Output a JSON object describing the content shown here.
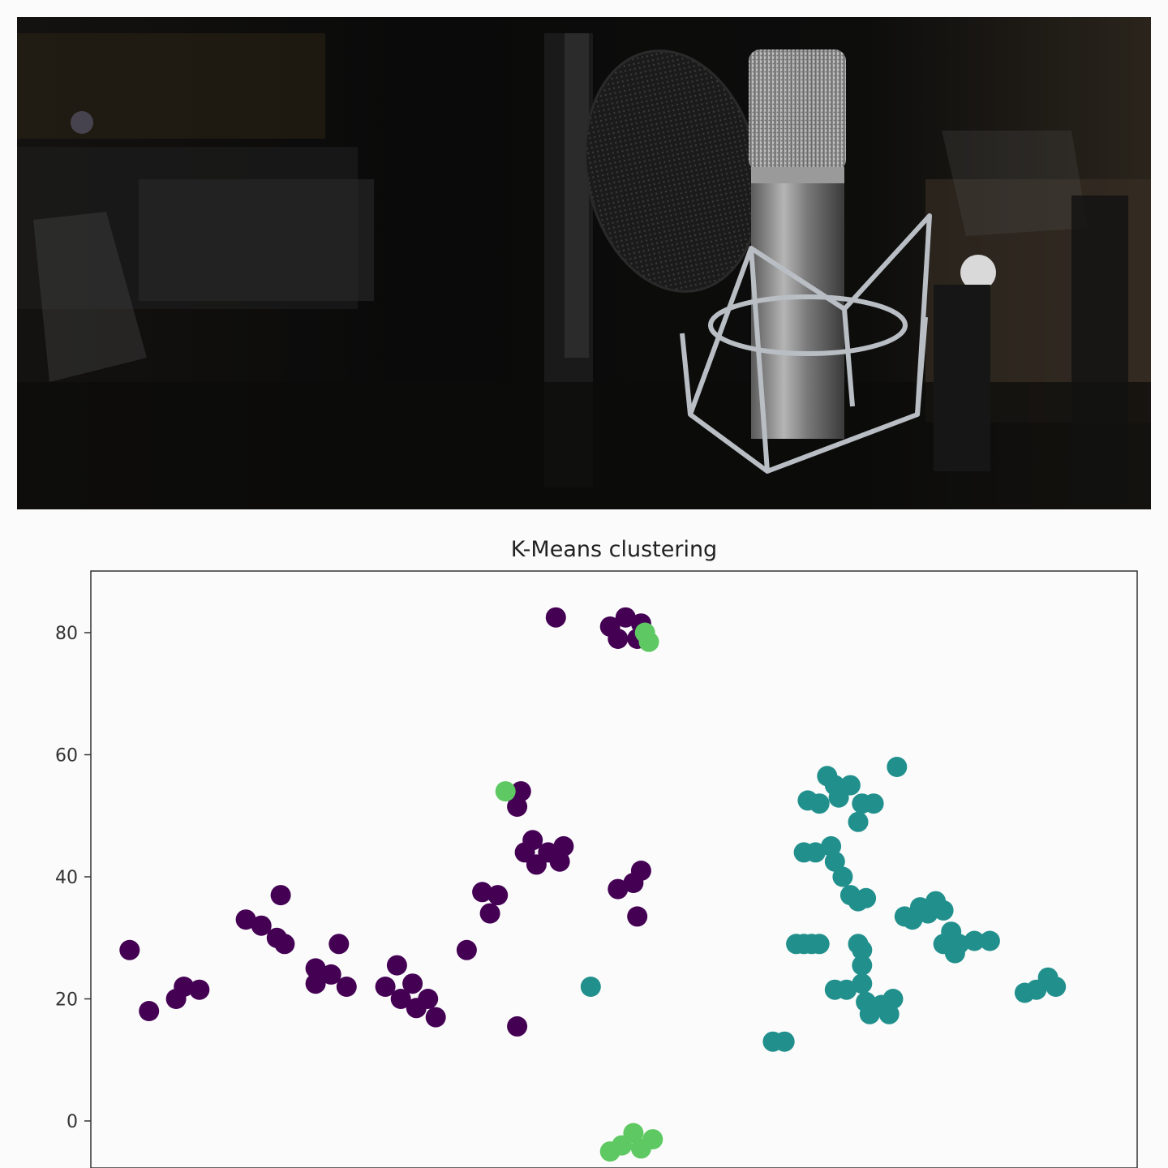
{
  "photo": {
    "subject": "studio-microphone-with-pop-filter"
  },
  "chart_data": {
    "type": "scatter",
    "title": "K-Means clustering",
    "xlabel": "",
    "ylabel": "",
    "ylim": [
      -5,
      90
    ],
    "yticks": [
      0,
      20,
      40,
      60,
      80
    ],
    "xticks_visible": false,
    "grid": false,
    "colors": {
      "cluster-0": "#440154",
      "cluster-1": "#21908d",
      "cluster-2": "#5ec962"
    },
    "series": [
      {
        "color": "#440154",
        "points": [
          [
            5,
            28
          ],
          [
            7.5,
            18
          ],
          [
            11,
            20
          ],
          [
            12,
            22
          ],
          [
            14,
            21.5
          ],
          [
            20,
            33
          ],
          [
            22,
            32
          ],
          [
            24,
            30
          ],
          [
            25,
            29
          ],
          [
            24.5,
            37
          ],
          [
            29,
            25
          ],
          [
            29,
            22.5
          ],
          [
            31,
            24
          ],
          [
            32,
            29
          ],
          [
            33,
            22
          ],
          [
            38,
            22
          ],
          [
            39.5,
            25.5
          ],
          [
            40,
            20
          ],
          [
            41.5,
            22.5
          ],
          [
            42,
            18.5
          ],
          [
            43.5,
            20
          ],
          [
            44.5,
            17
          ],
          [
            48.5,
            28
          ],
          [
            50.5,
            37.5
          ],
          [
            51.5,
            34
          ],
          [
            52.5,
            37
          ],
          [
            55,
            51.5
          ],
          [
            55.5,
            54
          ],
          [
            56,
            44
          ],
          [
            57,
            46
          ],
          [
            57.5,
            42
          ],
          [
            59,
            44
          ],
          [
            60.5,
            42.5
          ],
          [
            61,
            45
          ],
          [
            55,
            15.5
          ],
          [
            60,
            82.5
          ],
          [
            67,
            81
          ],
          [
            68,
            79
          ],
          [
            69,
            82.5
          ],
          [
            70.5,
            79
          ],
          [
            71,
            81.5
          ],
          [
            68,
            38
          ],
          [
            70,
            39
          ],
          [
            71,
            41
          ],
          [
            70.5,
            33.5
          ]
        ]
      },
      {
        "color": "#21908d",
        "points": [
          [
            64.5,
            22
          ],
          [
            88,
            13
          ],
          [
            89.5,
            13
          ],
          [
            91,
            29
          ],
          [
            92,
            29
          ],
          [
            93,
            29
          ],
          [
            94,
            29
          ],
          [
            92,
            44
          ],
          [
            93.5,
            44
          ],
          [
            95.5,
            45
          ],
          [
            96,
            42.5
          ],
          [
            97,
            40
          ],
          [
            98,
            37
          ],
          [
            99,
            36
          ],
          [
            100,
            36.5
          ],
          [
            92.5,
            52.5
          ],
          [
            94,
            52
          ],
          [
            95,
            56.5
          ],
          [
            96,
            55
          ],
          [
            96.5,
            53
          ],
          [
            98,
            55
          ],
          [
            99,
            49
          ],
          [
            99.5,
            52
          ],
          [
            101,
            52
          ],
          [
            104,
            58
          ],
          [
            99,
            29
          ],
          [
            99.5,
            28
          ],
          [
            99.5,
            25.5
          ],
          [
            99.5,
            22.5
          ],
          [
            100,
            19.5
          ],
          [
            100.5,
            17.5
          ],
          [
            102,
            19
          ],
          [
            103,
            17.5
          ],
          [
            103.5,
            20
          ],
          [
            96,
            21.5
          ],
          [
            97.5,
            21.5
          ],
          [
            105,
            33.5
          ],
          [
            106,
            33
          ],
          [
            107,
            35
          ],
          [
            108,
            34
          ],
          [
            109,
            36
          ],
          [
            110,
            34.5
          ],
          [
            110,
            29
          ],
          [
            111,
            31
          ],
          [
            111.5,
            27.5
          ],
          [
            112,
            29
          ],
          [
            114,
            29.5
          ],
          [
            116,
            29.5
          ],
          [
            120.5,
            21
          ],
          [
            122,
            21.5
          ],
          [
            123.5,
            23.5
          ],
          [
            124.5,
            22
          ]
        ]
      },
      {
        "color": "#5ec962",
        "points": [
          [
            53.5,
            54
          ],
          [
            71.5,
            80
          ],
          [
            72,
            78.5
          ],
          [
            67,
            -5
          ],
          [
            68.5,
            -4
          ],
          [
            70,
            -2
          ],
          [
            71,
            -4.5
          ],
          [
            72.5,
            -3
          ]
        ]
      }
    ]
  }
}
